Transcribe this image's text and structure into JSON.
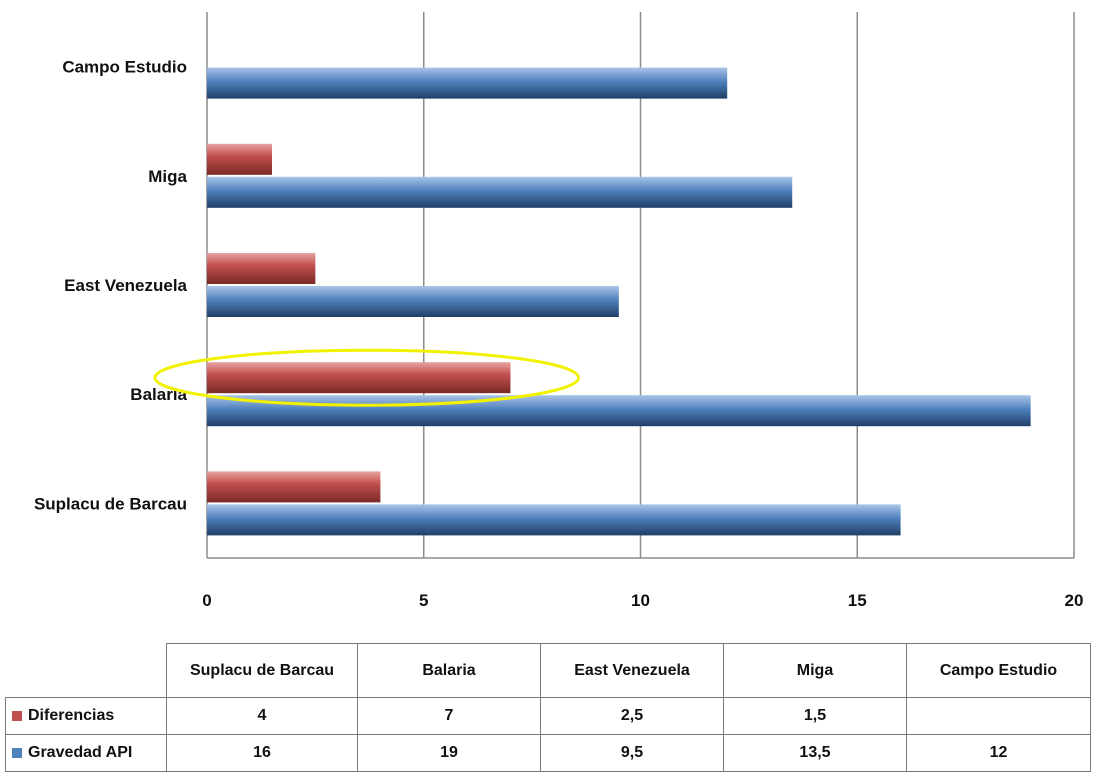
{
  "chart_data": {
    "type": "bar",
    "orientation": "horizontal",
    "categories": [
      "Suplacu de Barcau",
      "Balaria",
      "East Venezuela",
      "Miga",
      "Campo Estudio"
    ],
    "series": [
      {
        "name": "Diferencias",
        "values": [
          4,
          7,
          2.5,
          1.5,
          null
        ],
        "labels": [
          "4",
          "7",
          "2,5",
          "1,5",
          ""
        ],
        "color": "#c0504d"
      },
      {
        "name": "Gravedad API",
        "values": [
          16,
          19,
          9.5,
          13.5,
          12
        ],
        "labels": [
          "16",
          "19",
          "9,5",
          "13,5",
          "12"
        ],
        "color": "#4f81bd"
      }
    ],
    "xlim": [
      0,
      20
    ],
    "xticks": [
      "0",
      "5",
      "10",
      "15",
      "20"
    ],
    "grid": true,
    "legend": "data-table",
    "annotation": {
      "type": "ellipse",
      "target": "Balaria/Diferencias",
      "color": "#f2f200"
    }
  }
}
